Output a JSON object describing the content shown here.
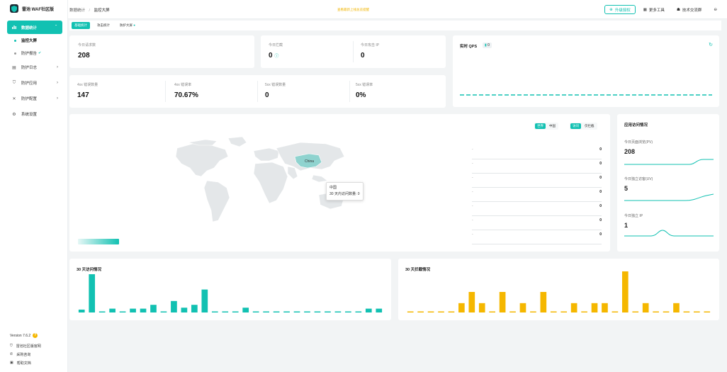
{
  "app": {
    "logo_text": "雷池 WAF社区版"
  },
  "sidebar": {
    "items": [
      {
        "label": "数据统计",
        "icon": "chart-icon",
        "active": true,
        "expanded": true,
        "children": [
          {
            "label": "监控大屏",
            "active": true
          },
          {
            "label": "防护报告"
          }
        ]
      },
      {
        "label": "防护日志",
        "icon": "log-icon"
      },
      {
        "label": "防护应用",
        "icon": "shield-icon"
      },
      {
        "label": "防护配置",
        "icon": "config-icon"
      },
      {
        "label": "系统设置",
        "icon": "gear-icon"
      }
    ],
    "version": "Version 7.6.2",
    "footer_links": [
      {
        "label": "雷池社区版官网",
        "icon": "home-icon"
      },
      {
        "label": "采购咨询",
        "icon": "chat-icon"
      },
      {
        "label": "帮助文档",
        "icon": "doc-icon"
      }
    ]
  },
  "header": {
    "breadcrumb": [
      "数据统计",
      "监控大屏"
    ],
    "notice": "查看最新上线总览提醒",
    "buttons": {
      "upgrade": "升级授权",
      "tools": "更多工具",
      "group": "技术交流群"
    }
  },
  "tabs": [
    "基础统计",
    "攻击统计",
    "防护大屏"
  ],
  "stats": {
    "today_requests": {
      "label": "今日请求数",
      "value": "208"
    },
    "today_blocked": {
      "label": "今日拦截",
      "value": "0"
    },
    "today_attack_ip": {
      "label": "今日攻击 IP",
      "value": "0"
    },
    "err4xx_count": {
      "label": "4xx 错误数量",
      "value": "147"
    },
    "err4xx_rate": {
      "label": "4xx 错误率",
      "value": "70.67%"
    },
    "err5xx_count": {
      "label": "5xx 错误数量",
      "value": "0"
    },
    "err5xx_rate": {
      "label": "5xx 错误率",
      "value": "0%"
    }
  },
  "qps": {
    "title": "实时 QPS",
    "badge": "0"
  },
  "map": {
    "scope_options": [
      "世界",
      "中国"
    ],
    "scope_selected": "世界",
    "metric_options": [
      "访问",
      "仅拦截"
    ],
    "metric_selected": "访问",
    "highlight_label": "China",
    "tooltip": {
      "title": "中国",
      "line": "30 天内访问数量: 0"
    },
    "ranking": [
      {
        "name": "-",
        "value": "0"
      },
      {
        "name": "-",
        "value": "0"
      },
      {
        "name": "-",
        "value": "0"
      },
      {
        "name": "-",
        "value": "0"
      },
      {
        "name": "-",
        "value": "0"
      },
      {
        "name": "-",
        "value": "0"
      },
      {
        "name": "-",
        "value": "0"
      }
    ]
  },
  "app_visits": {
    "title": "应用访问情况",
    "items": [
      {
        "label": "今日页面浏览(PV)",
        "value": "208"
      },
      {
        "label": "今日独立访客(UV)",
        "value": "5"
      },
      {
        "label": "今日独立 IP",
        "value": "1"
      }
    ]
  },
  "colors": {
    "accent": "#12c1b2",
    "warning": "#f5b700"
  },
  "chart_data": [
    {
      "type": "bar",
      "title": "30 天访问情况",
      "color": "#12c1b2",
      "values": [
        3,
        40,
        1,
        4,
        1,
        4,
        4,
        8,
        1,
        12,
        5,
        8,
        24,
        1,
        1,
        1,
        5,
        1,
        1,
        1,
        1,
        1,
        1,
        1,
        1,
        1,
        1,
        1,
        4,
        4
      ]
    },
    {
      "type": "bar",
      "title": "30 天拦截情况",
      "color": "#f5b700",
      "values": [
        1,
        1,
        1,
        1,
        1,
        10,
        22,
        10,
        1,
        22,
        1,
        10,
        1,
        22,
        1,
        1,
        10,
        1,
        10,
        10,
        1,
        44,
        1,
        10,
        1,
        1,
        10,
        1,
        1,
        1
      ]
    }
  ]
}
